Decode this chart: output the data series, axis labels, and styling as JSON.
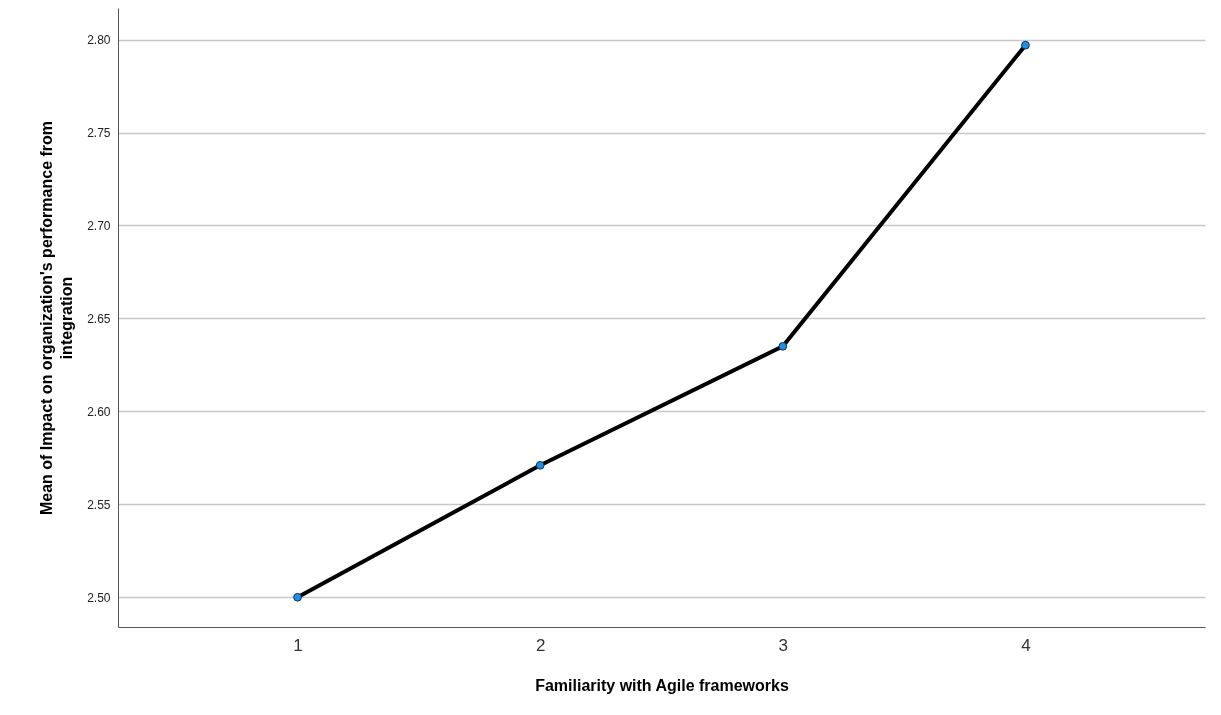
{
  "chart_data": {
    "type": "line",
    "xlabel": "Familiarity with Agile frameworks",
    "ylabel": "Mean of Impact on organization's performance from integration",
    "categories": [
      "1",
      "2",
      "3",
      "4"
    ],
    "series": [
      {
        "color": "#000000",
        "values": [
          2.5,
          2.571,
          2.635,
          2.797
        ]
      }
    ],
    "ylim": [
      2.484,
      2.817
    ],
    "yticks": [
      {
        "value": 2.5,
        "label": "2.50"
      },
      {
        "value": 2.55,
        "label": "2.55"
      },
      {
        "value": 2.6,
        "label": "2.60"
      },
      {
        "value": 2.65,
        "label": "2.65"
      },
      {
        "value": 2.7,
        "label": "2.70"
      },
      {
        "value": 2.75,
        "label": "2.75"
      },
      {
        "value": 2.8,
        "label": "2.80"
      }
    ],
    "grid": "y",
    "marker": "circle",
    "line_style": "solid"
  }
}
